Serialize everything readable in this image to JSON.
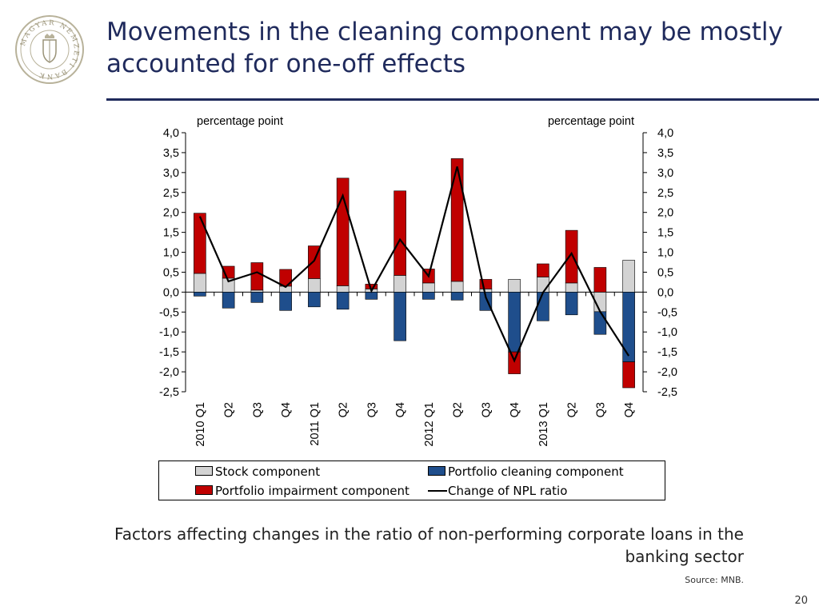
{
  "slide": {
    "title": "Movements in the cleaning component may be mostly accounted for one-off effects",
    "caption": "Factors affecting changes in the ratio of non-performing corporate loans in the banking sector",
    "source": "Source: MNB.",
    "page_number": "20",
    "logo_text": "MAGYAR NEMZETI BANK"
  },
  "colors": {
    "title": "#1f2a5c",
    "stock": "#d3d3d3",
    "cleaning": "#1f4e8c",
    "impairment": "#c00000",
    "line": "#000000"
  },
  "chart_data": {
    "type": "bar",
    "stacked": true,
    "left_axis_label": "percentage point",
    "right_axis_label": "percentage point",
    "ylim": [
      -2.5,
      4.0
    ],
    "yticks": [
      "4,0",
      "3,5",
      "3,0",
      "2,5",
      "2,0",
      "1,5",
      "1,0",
      "0,5",
      "0,0",
      "-0,5",
      "-1,0",
      "-1,5",
      "-2,0",
      "-2,5"
    ],
    "ytick_values": [
      4.0,
      3.5,
      3.0,
      2.5,
      2.0,
      1.5,
      1.0,
      0.5,
      0.0,
      -0.5,
      -1.0,
      -1.5,
      -2.0,
      -2.5
    ],
    "categories": [
      "2010 Q1",
      "Q2",
      "Q3",
      "Q4",
      "2011 Q1",
      "Q2",
      "Q3",
      "Q4",
      "2012 Q1",
      "Q2",
      "Q3",
      "Q4",
      "2013 Q1",
      "Q2",
      "Q3",
      "Q4"
    ],
    "series": [
      {
        "name": "Stock component",
        "kind": "bar",
        "values": [
          0.47,
          0.35,
          0.05,
          0.15,
          0.34,
          0.16,
          0.08,
          0.42,
          0.23,
          0.27,
          0.08,
          0.32,
          0.38,
          0.23,
          -0.49,
          0.8
        ]
      },
      {
        "name": "Portfolio cleaning component",
        "kind": "bar",
        "values": [
          -0.1,
          -0.4,
          -0.26,
          -0.46,
          -0.37,
          -0.43,
          -0.18,
          -1.22,
          -0.18,
          -0.2,
          -0.46,
          -1.5,
          -0.72,
          -0.57,
          -0.57,
          -1.75
        ]
      },
      {
        "name": "Portfolio impairment component",
        "kind": "bar",
        "values": [
          1.51,
          0.3,
          0.69,
          0.42,
          0.82,
          2.7,
          0.12,
          2.12,
          0.35,
          3.08,
          0.24,
          -0.55,
          0.33,
          1.32,
          0.62,
          -0.65
        ]
      },
      {
        "name": "Change of NPL ratio",
        "kind": "line",
        "values": [
          1.9,
          0.27,
          0.5,
          0.13,
          0.79,
          2.42,
          0.03,
          1.32,
          0.4,
          3.15,
          -0.13,
          -1.72,
          -0.01,
          0.97,
          -0.49,
          -1.6
        ]
      }
    ],
    "legend_position": "bottom",
    "grid": false
  }
}
